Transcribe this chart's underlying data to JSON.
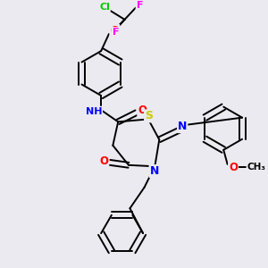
{
  "background_color": "#eaeaf0",
  "atom_colors": {
    "C": "#000000",
    "H": "#708090",
    "N": "#0000ff",
    "O": "#ff0000",
    "S": "#cccc00",
    "F": "#ff00ff",
    "Cl": "#00cc00"
  },
  "bond_color": "#000000",
  "bond_width": 1.4,
  "font_size_atom": 8.5
}
